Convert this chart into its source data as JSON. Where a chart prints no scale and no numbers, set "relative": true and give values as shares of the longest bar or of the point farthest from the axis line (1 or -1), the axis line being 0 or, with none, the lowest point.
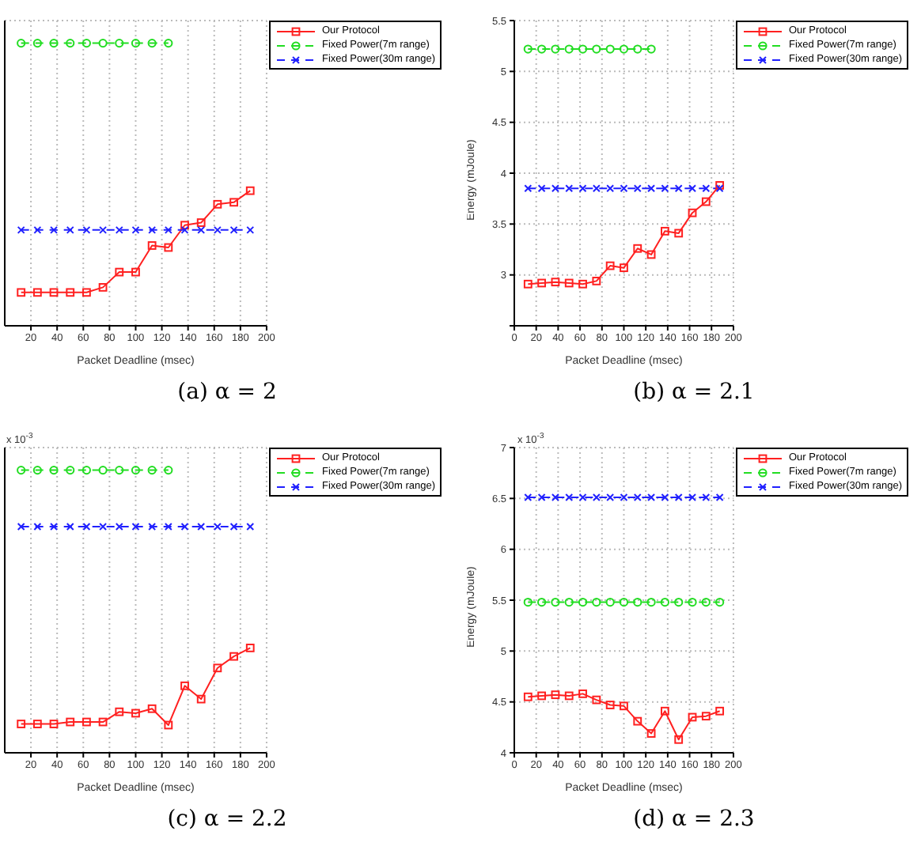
{
  "chart_data": [
    {
      "type": "line",
      "title": "(a) α = 2",
      "xlabel": "Packet Deadline (msec)",
      "relative": true,
      "tick_labels": "x",
      "x": [
        12.5,
        25,
        37.5,
        50,
        62.5,
        75,
        87.5,
        100,
        112.5,
        125,
        137.5,
        150,
        162.5,
        175,
        187.5
      ],
      "xlim": [
        0,
        200
      ],
      "xticks": [
        20,
        40,
        60,
        80,
        100,
        120,
        140,
        160,
        180,
        200
      ],
      "grid": true,
      "legend": "top right",
      "series": [
        {
          "name": "Our Protocol",
          "color": "#ff2020",
          "marker": "square",
          "line_style": "solid",
          "values": [
            0.118,
            0.118,
            0.118,
            0.118,
            0.118,
            0.136,
            0.19,
            0.19,
            0.284,
            0.277,
            0.356,
            0.365,
            0.43,
            0.437,
            0.478
          ]
        },
        {
          "name": "Fixed Power(7m range)",
          "color": "#22dd22",
          "marker": "circle",
          "line_style": "dashed",
          "values": [
            1,
            1,
            1,
            1,
            1,
            1,
            1,
            1,
            1,
            1,
            null,
            null,
            null,
            null,
            null
          ]
        },
        {
          "name": "Fixed Power(30m range)",
          "color": "#2020ff",
          "marker": "cross",
          "line_style": "dashed",
          "values": [
            0.339,
            0.339,
            0.339,
            0.339,
            0.339,
            0.339,
            0.339,
            0.339,
            0.339,
            0.339,
            0.339,
            0.339,
            0.339,
            0.339,
            0.339
          ]
        }
      ]
    },
    {
      "type": "line",
      "title": "(b) α = 2.1",
      "xlabel": "Packet Deadline (msec)",
      "ylabel": "Energy (mJoule)",
      "x": [
        12.5,
        25,
        37.5,
        50,
        62.5,
        75,
        87.5,
        100,
        112.5,
        125,
        137.5,
        150,
        162.5,
        175,
        187.5
      ],
      "xlim": [
        0,
        200
      ],
      "xticks": [
        0,
        20,
        40,
        60,
        80,
        100,
        120,
        140,
        160,
        180,
        200
      ],
      "ylim": [
        2.5,
        5.5
      ],
      "yticks": [
        {
          "value": 2.5,
          "label": null
        },
        3,
        3.5,
        4,
        4.5,
        5,
        5.5
      ],
      "grid": true,
      "legend": "top right",
      "series": [
        {
          "name": "Our Protocol",
          "color": "#ff2020",
          "marker": "square",
          "line_style": "solid",
          "values": [
            2.91,
            2.92,
            2.93,
            2.92,
            2.91,
            2.94,
            3.09,
            3.07,
            3.26,
            3.2,
            3.43,
            3.41,
            3.61,
            3.72,
            3.88
          ]
        },
        {
          "name": "Fixed Power(7m range)",
          "color": "#22dd22",
          "marker": "circle",
          "line_style": "dashed",
          "values": [
            5.22,
            5.22,
            5.22,
            5.22,
            5.22,
            5.22,
            5.22,
            5.22,
            5.22,
            5.22,
            null,
            null,
            null,
            null,
            null
          ]
        },
        {
          "name": "Fixed Power(30m range)",
          "color": "#2020ff",
          "marker": "cross",
          "line_style": "dashed",
          "values": [
            3.85,
            3.85,
            3.85,
            3.85,
            3.85,
            3.85,
            3.85,
            3.85,
            3.85,
            3.85,
            3.85,
            3.85,
            3.85,
            3.85,
            3.85
          ]
        }
      ]
    },
    {
      "type": "line",
      "title": "(c) α = 2.2",
      "xlabel": "Packet Deadline (msec)",
      "relative": true,
      "tick_labels": "x",
      "annotations": [
        "x 10$^{-3}$"
      ],
      "x": [
        12.5,
        25,
        37.5,
        50,
        62.5,
        75,
        87.5,
        100,
        112.5,
        125,
        137.5,
        150,
        162.5,
        175,
        187.5
      ],
      "xlim": [
        0,
        200
      ],
      "xticks": [
        20,
        40,
        60,
        80,
        100,
        120,
        140,
        160,
        180,
        200
      ],
      "grid": true,
      "legend": "top right",
      "series": [
        {
          "name": "Our Protocol",
          "color": "#ff2020",
          "marker": "square",
          "line_style": "solid",
          "values": [
            0.102,
            0.102,
            0.102,
            0.109,
            0.109,
            0.109,
            0.145,
            0.14,
            0.156,
            0.098,
            0.237,
            0.19,
            0.3,
            0.341,
            0.371
          ]
        },
        {
          "name": "Fixed Power(7m range)",
          "color": "#22dd22",
          "marker": "circle",
          "line_style": "dashed",
          "values": [
            1,
            1,
            1,
            1,
            1,
            1,
            1,
            1,
            1,
            1,
            null,
            null,
            null,
            null,
            null
          ]
        },
        {
          "name": "Fixed Power(30m range)",
          "color": "#2020ff",
          "marker": "cross",
          "line_style": "dashed",
          "values": [
            0.8,
            0.8,
            0.8,
            0.8,
            0.8,
            0.8,
            0.8,
            0.8,
            0.8,
            0.8,
            0.8,
            0.8,
            0.8,
            0.8,
            0.8
          ]
        }
      ]
    },
    {
      "type": "line",
      "title": "(d) α = 2.3",
      "xlabel": "Packet Deadline (msec)",
      "ylabel": "Energy (mJoule)",
      "annotations": [
        "x 10$^{-3}$"
      ],
      "x": [
        12.5,
        25,
        37.5,
        50,
        62.5,
        75,
        87.5,
        100,
        112.5,
        125,
        137.5,
        150,
        162.5,
        175,
        187.5
      ],
      "xlim": [
        0,
        200
      ],
      "xticks": [
        0,
        20,
        40,
        60,
        80,
        100,
        120,
        140,
        160,
        180,
        200
      ],
      "ylim": [
        4,
        7
      ],
      "yticks": [
        4,
        4.5,
        5,
        5.5,
        6,
        6.5,
        7
      ],
      "grid": true,
      "legend": "top right",
      "series": [
        {
          "name": "Our Protocol",
          "color": "#ff2020",
          "marker": "square",
          "line_style": "solid",
          "values": [
            4.55,
            4.56,
            4.57,
            4.56,
            4.58,
            4.52,
            4.47,
            4.46,
            4.31,
            4.19,
            4.41,
            4.13,
            4.35,
            4.36,
            4.41
          ]
        },
        {
          "name": "Fixed Power(7m range)",
          "color": "#22dd22",
          "marker": "circle",
          "line_style": "dashed",
          "values": [
            5.48,
            5.48,
            5.48,
            5.48,
            5.48,
            5.48,
            5.48,
            5.48,
            5.48,
            5.48,
            5.48,
            5.48,
            5.48,
            5.48,
            5.48
          ]
        },
        {
          "name": "Fixed Power(30m range)",
          "color": "#2020ff",
          "marker": "cross",
          "line_style": "dashed",
          "values": [
            6.51,
            6.51,
            6.51,
            6.51,
            6.51,
            6.51,
            6.51,
            6.51,
            6.51,
            6.51,
            6.51,
            6.51,
            6.51,
            6.51,
            6.51
          ]
        }
      ]
    }
  ]
}
